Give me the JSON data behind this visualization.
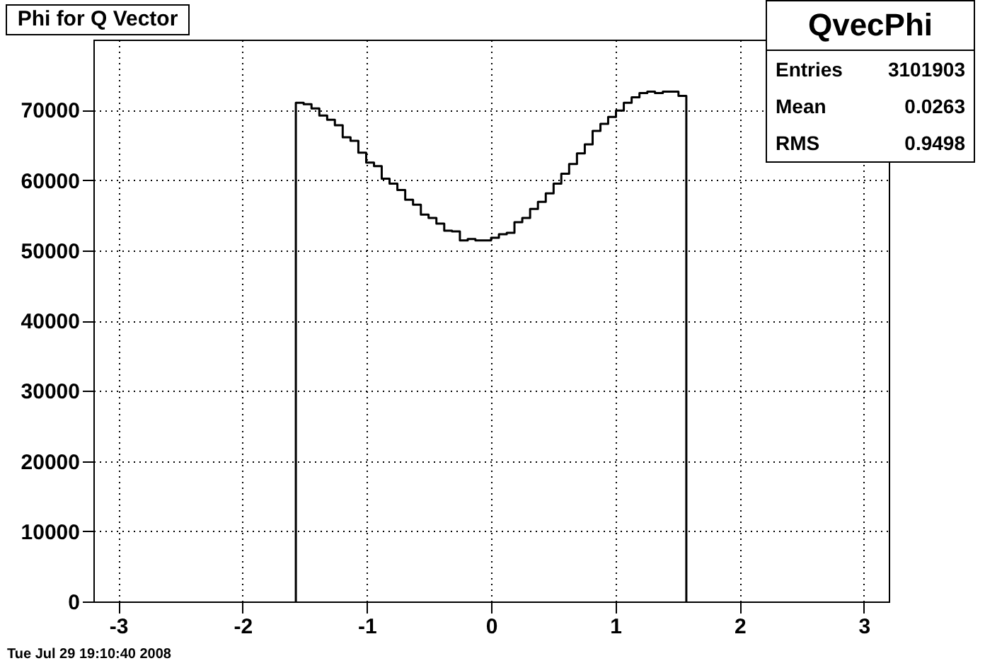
{
  "chart_data": {
    "type": "histogram",
    "title": "Phi for Q Vector",
    "bins": [
      -1.571,
      -1.508,
      -1.445,
      -1.382,
      -1.319,
      -1.257,
      -1.194,
      -1.131,
      -1.068,
      -1.005,
      -0.942,
      -0.88,
      -0.817,
      -0.754,
      -0.691,
      -0.628,
      -0.565,
      -0.503,
      -0.44,
      -0.377,
      -0.314,
      -0.251,
      -0.188,
      -0.126,
      -0.063,
      0,
      0.063,
      0.126,
      0.188,
      0.251,
      0.314,
      0.377,
      0.44,
      0.503,
      0.565,
      0.628,
      0.691,
      0.754,
      0.817,
      0.88,
      0.942,
      1.005,
      1.068,
      1.131,
      1.194,
      1.257,
      1.319,
      1.382,
      1.445,
      1.508,
      1.571
    ],
    "values": [
      71000,
      70800,
      70200,
      69200,
      68600,
      67800,
      66100,
      65600,
      63900,
      62500,
      62000,
      60200,
      59500,
      58600,
      57200,
      56500,
      55100,
      54600,
      53800,
      52800,
      52700,
      51400,
      51600,
      51400,
      51400,
      51800,
      52300,
      52500,
      54000,
      54600,
      55900,
      56900,
      58100,
      59500,
      60900,
      62300,
      63800,
      65100,
      67000,
      68000,
      69000,
      69900,
      71000,
      71800,
      72400,
      72600,
      72400,
      72600,
      72600,
      72000
    ],
    "color": "#000000",
    "xlim": [
      -3.2,
      3.2
    ],
    "xticks": [
      -3,
      -2,
      -1,
      0,
      1,
      2,
      3
    ],
    "ylim": [
      0,
      80000
    ],
    "yticks": [
      0,
      10000,
      20000,
      30000,
      40000,
      50000,
      60000,
      70000
    ],
    "grid": true,
    "annotations": [
      "QvecPhi",
      "Entries",
      "3101903",
      "Mean",
      "0.0263",
      "RMS",
      "0.9498",
      "Tue Jul 29 19:10:40 2008"
    ]
  }
}
